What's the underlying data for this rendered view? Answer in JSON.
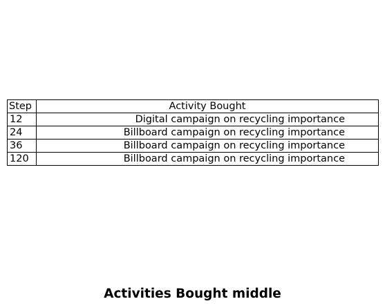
{
  "chart_data": {
    "type": "table",
    "title": "Activities Bought middle",
    "columns": [
      "Step",
      "Activity Bought"
    ],
    "rows": [
      {
        "step": "12",
        "activity": "Digital campaign on recycling importance"
      },
      {
        "step": "24",
        "activity": "Billboard campaign on recycling importance"
      },
      {
        "step": "36",
        "activity": "Billboard campaign on recycling importance"
      },
      {
        "step": "120",
        "activity": "Billboard campaign on recycling importance"
      }
    ]
  }
}
